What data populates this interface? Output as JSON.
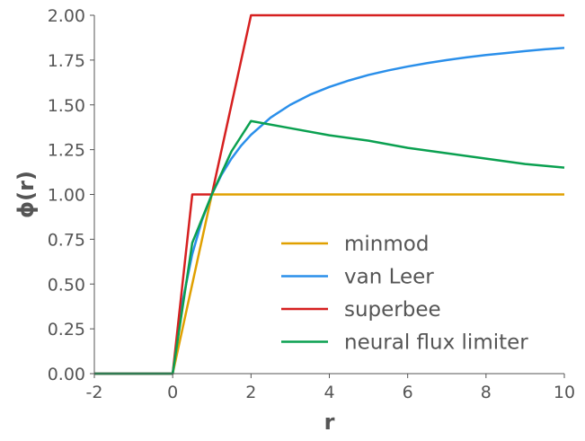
{
  "chart_data": {
    "type": "line",
    "title": "",
    "xlabel": "r",
    "ylabel": "ϕ(r)",
    "xlim": [
      -2,
      10
    ],
    "ylim": [
      0,
      2
    ],
    "x_ticks": [
      -2,
      0,
      2,
      4,
      6,
      8,
      10
    ],
    "x_tick_labels": [
      "-2",
      "0",
      "2",
      "4",
      "6",
      "8",
      "10"
    ],
    "y_ticks": [
      0,
      0.25,
      0.5,
      0.75,
      1.0,
      1.25,
      1.5,
      1.75,
      2.0
    ],
    "y_tick_labels": [
      "0.00",
      "0.25",
      "0.50",
      "0.75",
      "1.00",
      "1.25",
      "1.50",
      "1.75",
      "2.00"
    ],
    "grid": false,
    "legend_position": "lower-right",
    "series": [
      {
        "name": "minmod",
        "color": "#E0A000",
        "x": [
          -2,
          0,
          1,
          10
        ],
        "y": [
          0,
          0,
          1,
          1
        ]
      },
      {
        "name": "van Leer",
        "color": "#2A8FEA",
        "x": [
          -2,
          0,
          0.25,
          0.5,
          0.75,
          1,
          1.25,
          1.5,
          1.75,
          2,
          2.5,
          3,
          3.5,
          4,
          4.5,
          5,
          5.5,
          6,
          6.5,
          7,
          7.5,
          8,
          8.5,
          9,
          9.5,
          10
        ],
        "y": [
          0,
          0,
          0.4,
          0.667,
          0.857,
          1.0,
          1.111,
          1.2,
          1.273,
          1.333,
          1.429,
          1.5,
          1.556,
          1.6,
          1.636,
          1.667,
          1.692,
          1.714,
          1.733,
          1.75,
          1.765,
          1.778,
          1.789,
          1.8,
          1.81,
          1.818
        ]
      },
      {
        "name": "superbee",
        "color": "#D62020",
        "x": [
          -2,
          0,
          0.5,
          1,
          2,
          10
        ],
        "y": [
          0,
          0,
          1,
          1,
          2,
          2
        ]
      },
      {
        "name": "neural flux limiter",
        "color": "#0AA050",
        "x": [
          -2,
          0,
          0.5,
          1,
          1.5,
          2,
          3,
          4,
          5,
          6,
          7,
          8,
          9,
          10
        ],
        "y": [
          0,
          0,
          0.73,
          1.0,
          1.24,
          1.41,
          1.37,
          1.33,
          1.3,
          1.26,
          1.23,
          1.2,
          1.17,
          1.15
        ]
      }
    ]
  }
}
